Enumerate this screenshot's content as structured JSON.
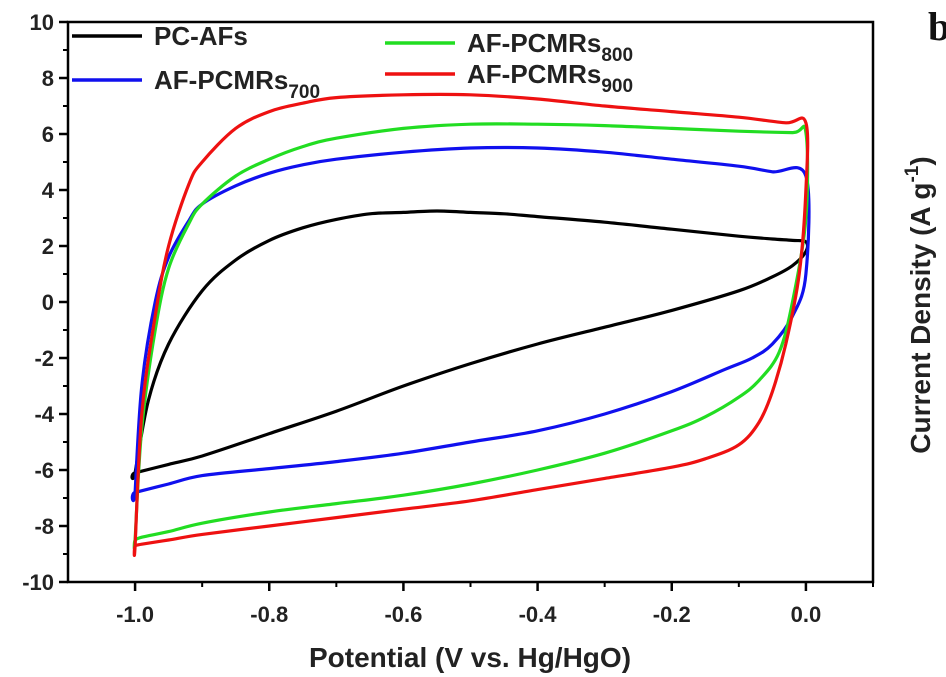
{
  "chart_data": {
    "type": "line",
    "xlabel": "Potential (V vs. Hg/HgO)",
    "ylabel": "Current Density (A g",
    "ylabel_sup": "-1",
    "ylabel_close": ")",
    "panel_label": "b",
    "xlim": [
      -1.1,
      0.1
    ],
    "ylim": [
      -10,
      10
    ],
    "xticks": [
      "-1.0",
      "-0.8",
      "-0.6",
      "-0.4",
      "-0.2",
      "0.0"
    ],
    "yticks": [
      "10",
      "8",
      "6",
      "4",
      "2",
      "0",
      "-2",
      "-4",
      "-6",
      "-8",
      "-10"
    ],
    "legend_position": "top",
    "series": [
      {
        "name": "PC-AFs",
        "name_sub": "",
        "color": "#000000",
        "x": [
          -1.0,
          -0.98,
          -0.95,
          -0.9,
          -0.85,
          -0.8,
          -0.75,
          -0.7,
          -0.65,
          -0.6,
          -0.55,
          -0.5,
          -0.45,
          -0.4,
          -0.3,
          -0.2,
          -0.1,
          -0.05,
          -0.02,
          0.0,
          0.0,
          -0.02,
          -0.05,
          -0.1,
          -0.2,
          -0.3,
          -0.4,
          -0.5,
          -0.6,
          -0.7,
          -0.8,
          -0.9,
          -0.95,
          -1.0
        ],
        "y": [
          -6.1,
          -3.5,
          -1.5,
          0.4,
          1.5,
          2.2,
          2.65,
          2.95,
          3.15,
          3.2,
          3.25,
          3.2,
          3.15,
          3.05,
          2.85,
          2.6,
          2.35,
          2.25,
          2.2,
          2.15,
          1.8,
          1.3,
          0.9,
          0.4,
          -0.3,
          -0.9,
          -1.5,
          -2.2,
          -3.0,
          -3.9,
          -4.7,
          -5.5,
          -5.8,
          -6.1
        ]
      },
      {
        "name": "AF-PCMRs",
        "name_sub": "700",
        "color": "#1010ee",
        "x": [
          -1.0,
          -0.99,
          -0.97,
          -0.95,
          -0.92,
          -0.9,
          -0.85,
          -0.8,
          -0.75,
          -0.7,
          -0.6,
          -0.5,
          -0.4,
          -0.3,
          -0.2,
          -0.1,
          -0.05,
          0.0,
          0.0,
          -0.02,
          -0.05,
          -0.08,
          -0.12,
          -0.2,
          -0.3,
          -0.4,
          -0.5,
          -0.6,
          -0.7,
          -0.8,
          -0.9,
          -0.95,
          -1.0
        ],
        "y": [
          -6.8,
          -3.0,
          0.0,
          1.6,
          2.9,
          3.5,
          4.15,
          4.6,
          4.9,
          5.1,
          5.35,
          5.5,
          5.5,
          5.35,
          5.1,
          4.85,
          4.65,
          4.5,
          1.0,
          -0.5,
          -1.5,
          -2.0,
          -2.4,
          -3.2,
          -4.0,
          -4.6,
          -5.0,
          -5.4,
          -5.7,
          -5.95,
          -6.2,
          -6.5,
          -6.8
        ]
      },
      {
        "name": "AF-PCMRs",
        "name_sub": "800",
        "color": "#22dd22",
        "x": [
          -1.0,
          -0.99,
          -0.97,
          -0.95,
          -0.92,
          -0.9,
          -0.85,
          -0.8,
          -0.75,
          -0.7,
          -0.6,
          -0.5,
          -0.4,
          -0.3,
          -0.2,
          -0.1,
          -0.02,
          0.0,
          0.0,
          -0.02,
          -0.04,
          -0.07,
          -0.1,
          -0.15,
          -0.2,
          -0.3,
          -0.4,
          -0.5,
          -0.6,
          -0.7,
          -0.8,
          -0.9,
          -0.95,
          -0.99,
          -1.0
        ],
        "y": [
          -8.5,
          -4.5,
          -1.0,
          1.2,
          2.8,
          3.5,
          4.5,
          5.1,
          5.55,
          5.85,
          6.2,
          6.35,
          6.35,
          6.3,
          6.2,
          6.1,
          6.05,
          6.05,
          3.0,
          0.0,
          -1.8,
          -2.8,
          -3.4,
          -4.1,
          -4.6,
          -5.4,
          -6.0,
          -6.5,
          -6.9,
          -7.2,
          -7.5,
          -7.9,
          -8.2,
          -8.4,
          -8.5
        ]
      },
      {
        "name": "AF-PCMRs",
        "name_sub": "900",
        "color": "#ee1111",
        "x": [
          -1.0,
          -0.99,
          -0.97,
          -0.95,
          -0.92,
          -0.9,
          -0.85,
          -0.8,
          -0.75,
          -0.7,
          -0.6,
          -0.5,
          -0.4,
          -0.3,
          -0.2,
          -0.1,
          -0.03,
          0.0,
          0.0,
          -0.01,
          -0.03,
          -0.05,
          -0.07,
          -0.1,
          -0.15,
          -0.2,
          -0.3,
          -0.4,
          -0.5,
          -0.6,
          -0.7,
          -0.8,
          -0.9,
          -0.95,
          -0.99,
          -1.0
        ],
        "y": [
          -8.7,
          -4.0,
          -0.5,
          2.0,
          4.2,
          5.0,
          6.2,
          6.8,
          7.1,
          7.3,
          7.4,
          7.4,
          7.25,
          7.0,
          6.8,
          6.6,
          6.4,
          6.4,
          4.0,
          1.0,
          -1.5,
          -3.2,
          -4.3,
          -5.1,
          -5.6,
          -5.9,
          -6.3,
          -6.7,
          -7.1,
          -7.4,
          -7.7,
          -8.0,
          -8.3,
          -8.5,
          -8.65,
          -8.7
        ]
      }
    ]
  }
}
